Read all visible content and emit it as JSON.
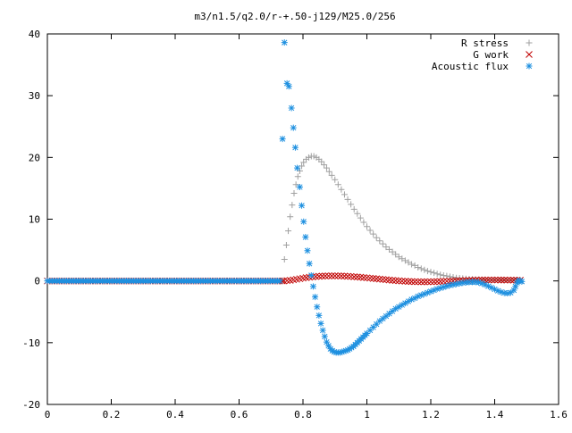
{
  "chart_data": {
    "type": "scatter",
    "title": "m3/n1.5/q2.0/r-+.50-j129/M25.0/256",
    "xlabel": "",
    "ylabel": "",
    "xlim": [
      0,
      1.6
    ],
    "ylim": [
      -20,
      40
    ],
    "xticks": [
      "0",
      "0.2",
      "0.4",
      "0.6",
      "0.8",
      "1",
      "1.2",
      "1.4",
      "1.6"
    ],
    "yticks": [
      "-20",
      "-10",
      "0",
      "10",
      "20",
      "30",
      "40"
    ],
    "legend_position": "top-right",
    "grid": false,
    "series": [
      {
        "name": "R stress",
        "marker": "plus",
        "color": "#a0a0a0",
        "points": [
          [
            0.742,
            3.5
          ],
          [
            0.748,
            5.8
          ],
          [
            0.754,
            8.1
          ],
          [
            0.76,
            10.4
          ],
          [
            0.766,
            12.3
          ],
          [
            0.772,
            14.2
          ],
          [
            0.778,
            15.6
          ],
          [
            0.784,
            16.9
          ],
          [
            0.79,
            17.8
          ],
          [
            0.796,
            18.6
          ],
          [
            0.802,
            19.2
          ],
          [
            0.81,
            19.7
          ],
          [
            0.818,
            20.0
          ],
          [
            0.826,
            20.2
          ],
          [
            0.834,
            20.2
          ],
          [
            0.842,
            20.0
          ],
          [
            0.85,
            19.7
          ],
          [
            0.858,
            19.3
          ],
          [
            0.866,
            18.8
          ],
          [
            0.874,
            18.3
          ],
          [
            0.882,
            17.7
          ],
          [
            0.89,
            17.1
          ],
          [
            0.9,
            16.4
          ],
          [
            0.91,
            15.6
          ],
          [
            0.92,
            14.8
          ],
          [
            0.93,
            14.0
          ],
          [
            0.94,
            13.2
          ],
          [
            0.95,
            12.4
          ],
          [
            0.96,
            11.6
          ],
          [
            0.97,
            10.9
          ],
          [
            0.98,
            10.2
          ],
          [
            0.99,
            9.5
          ],
          [
            1.0,
            8.8
          ],
          [
            1.01,
            8.2
          ],
          [
            1.02,
            7.6
          ],
          [
            1.03,
            7.0
          ],
          [
            1.04,
            6.5
          ],
          [
            1.05,
            6.0
          ],
          [
            1.06,
            5.5
          ],
          [
            1.07,
            5.1
          ],
          [
            1.08,
            4.7
          ],
          [
            1.09,
            4.3
          ],
          [
            1.1,
            3.9
          ],
          [
            1.11,
            3.6
          ],
          [
            1.12,
            3.3
          ],
          [
            1.13,
            3.0
          ],
          [
            1.14,
            2.7
          ],
          [
            1.15,
            2.5
          ],
          [
            1.16,
            2.2
          ],
          [
            1.17,
            2.0
          ],
          [
            1.18,
            1.8
          ],
          [
            1.19,
            1.6
          ],
          [
            1.2,
            1.45
          ],
          [
            1.21,
            1.3
          ],
          [
            1.22,
            1.15
          ],
          [
            1.23,
            1.0
          ],
          [
            1.24,
            0.9
          ],
          [
            1.25,
            0.8
          ],
          [
            1.26,
            0.7
          ],
          [
            1.27,
            0.6
          ],
          [
            1.28,
            0.5
          ],
          [
            1.29,
            0.45
          ],
          [
            1.3,
            0.4
          ],
          [
            1.31,
            0.35
          ],
          [
            1.32,
            0.3
          ],
          [
            1.33,
            0.27
          ],
          [
            1.34,
            0.24
          ],
          [
            1.35,
            0.22
          ],
          [
            1.36,
            0.2
          ],
          [
            1.37,
            0.18
          ],
          [
            1.38,
            0.17
          ],
          [
            1.39,
            0.16
          ],
          [
            1.4,
            0.15
          ],
          [
            1.41,
            0.15
          ],
          [
            1.42,
            0.14
          ],
          [
            1.43,
            0.14
          ],
          [
            1.44,
            0.13
          ],
          [
            1.45,
            0.13
          ],
          [
            1.46,
            0.12
          ],
          [
            1.47,
            0.12
          ],
          [
            1.48,
            0.12
          ]
        ]
      },
      {
        "name": "G work",
        "marker": "cross",
        "color": "#c00000",
        "points": [
          [
            0.74,
            0.0
          ],
          [
            0.75,
            0.05
          ],
          [
            0.76,
            0.1
          ],
          [
            0.77,
            0.18
          ],
          [
            0.78,
            0.27
          ],
          [
            0.79,
            0.36
          ],
          [
            0.8,
            0.45
          ],
          [
            0.81,
            0.53
          ],
          [
            0.82,
            0.6
          ],
          [
            0.83,
            0.66
          ],
          [
            0.84,
            0.71
          ],
          [
            0.85,
            0.75
          ],
          [
            0.86,
            0.78
          ],
          [
            0.87,
            0.8
          ],
          [
            0.88,
            0.81
          ],
          [
            0.89,
            0.82
          ],
          [
            0.9,
            0.82
          ],
          [
            0.91,
            0.81
          ],
          [
            0.92,
            0.8
          ],
          [
            0.93,
            0.78
          ],
          [
            0.94,
            0.75
          ],
          [
            0.95,
            0.72
          ],
          [
            0.96,
            0.68
          ],
          [
            0.97,
            0.64
          ],
          [
            0.98,
            0.6
          ],
          [
            0.99,
            0.55
          ],
          [
            1.0,
            0.5
          ],
          [
            1.01,
            0.45
          ],
          [
            1.02,
            0.4
          ],
          [
            1.03,
            0.35
          ],
          [
            1.04,
            0.3
          ],
          [
            1.05,
            0.25
          ],
          [
            1.06,
            0.2
          ],
          [
            1.07,
            0.15
          ],
          [
            1.08,
            0.1
          ],
          [
            1.09,
            0.06
          ],
          [
            1.1,
            0.02
          ],
          [
            1.11,
            -0.02
          ],
          [
            1.12,
            -0.05
          ],
          [
            1.13,
            -0.08
          ],
          [
            1.14,
            -0.1
          ],
          [
            1.15,
            -0.12
          ],
          [
            1.16,
            -0.13
          ],
          [
            1.17,
            -0.14
          ],
          [
            1.18,
            -0.14
          ],
          [
            1.19,
            -0.14
          ],
          [
            1.2,
            -0.13
          ],
          [
            1.21,
            -0.12
          ],
          [
            1.22,
            -0.1
          ],
          [
            1.23,
            -0.08
          ],
          [
            1.24,
            -0.06
          ],
          [
            1.25,
            -0.04
          ],
          [
            1.26,
            -0.02
          ],
          [
            1.27,
            0.0
          ],
          [
            1.28,
            0.02
          ],
          [
            1.29,
            0.04
          ],
          [
            1.3,
            0.06
          ],
          [
            1.31,
            0.08
          ],
          [
            1.32,
            0.1
          ],
          [
            1.33,
            0.12
          ],
          [
            1.34,
            0.13
          ],
          [
            1.35,
            0.14
          ],
          [
            1.36,
            0.15
          ],
          [
            1.37,
            0.15
          ],
          [
            1.38,
            0.16
          ],
          [
            1.39,
            0.16
          ],
          [
            1.4,
            0.16
          ],
          [
            1.41,
            0.16
          ],
          [
            1.42,
            0.15
          ],
          [
            1.43,
            0.15
          ],
          [
            1.44,
            0.14
          ],
          [
            1.45,
            0.14
          ],
          [
            1.46,
            0.13
          ],
          [
            1.47,
            0.12
          ],
          [
            1.48,
            0.12
          ]
        ]
      },
      {
        "name": "Acoustic flux",
        "marker": "star",
        "color": "#1e90e0",
        "points": [
          [
            0.736,
            23.0
          ],
          [
            0.742,
            38.6
          ],
          [
            0.75,
            32.0
          ],
          [
            0.756,
            31.5
          ],
          [
            0.764,
            28.0
          ],
          [
            0.77,
            24.8
          ],
          [
            0.776,
            21.6
          ],
          [
            0.782,
            18.3
          ],
          [
            0.79,
            15.2
          ],
          [
            0.796,
            12.2
          ],
          [
            0.802,
            9.6
          ],
          [
            0.808,
            7.1
          ],
          [
            0.814,
            4.9
          ],
          [
            0.82,
            2.8
          ],
          [
            0.826,
            0.9
          ],
          [
            0.832,
            -0.9
          ],
          [
            0.838,
            -2.6
          ],
          [
            0.844,
            -4.2
          ],
          [
            0.85,
            -5.6
          ],
          [
            0.856,
            -6.9
          ],
          [
            0.862,
            -8.0
          ],
          [
            0.868,
            -9.0
          ],
          [
            0.874,
            -9.9
          ],
          [
            0.88,
            -10.5
          ],
          [
            0.886,
            -11.0
          ],
          [
            0.892,
            -11.3
          ],
          [
            0.898,
            -11.5
          ],
          [
            0.904,
            -11.6
          ],
          [
            0.91,
            -11.6
          ],
          [
            0.916,
            -11.6
          ],
          [
            0.922,
            -11.5
          ],
          [
            0.928,
            -11.4
          ],
          [
            0.934,
            -11.3
          ],
          [
            0.94,
            -11.2
          ],
          [
            0.946,
            -11.0
          ],
          [
            0.952,
            -10.8
          ],
          [
            0.958,
            -10.6
          ],
          [
            0.964,
            -10.3
          ],
          [
            0.97,
            -10.0
          ],
          [
            0.976,
            -9.7
          ],
          [
            0.982,
            -9.4
          ],
          [
            0.988,
            -9.1
          ],
          [
            0.994,
            -8.8
          ],
          [
            1.0,
            -8.5
          ],
          [
            1.01,
            -8.0
          ],
          [
            1.02,
            -7.5
          ],
          [
            1.03,
            -7.0
          ],
          [
            1.04,
            -6.5
          ],
          [
            1.05,
            -6.1
          ],
          [
            1.06,
            -5.7
          ],
          [
            1.07,
            -5.3
          ],
          [
            1.08,
            -4.9
          ],
          [
            1.09,
            -4.5
          ],
          [
            1.1,
            -4.2
          ],
          [
            1.11,
            -3.9
          ],
          [
            1.12,
            -3.6
          ],
          [
            1.13,
            -3.3
          ],
          [
            1.14,
            -3.0
          ],
          [
            1.15,
            -2.8
          ],
          [
            1.16,
            -2.5
          ],
          [
            1.17,
            -2.3
          ],
          [
            1.18,
            -2.1
          ],
          [
            1.19,
            -1.9
          ],
          [
            1.2,
            -1.7
          ],
          [
            1.21,
            -1.5
          ],
          [
            1.22,
            -1.3
          ],
          [
            1.23,
            -1.15
          ],
          [
            1.24,
            -1.0
          ],
          [
            1.25,
            -0.85
          ],
          [
            1.26,
            -0.7
          ],
          [
            1.27,
            -0.6
          ],
          [
            1.28,
            -0.5
          ],
          [
            1.29,
            -0.4
          ],
          [
            1.3,
            -0.3
          ],
          [
            1.31,
            -0.25
          ],
          [
            1.32,
            -0.2
          ],
          [
            1.33,
            -0.18
          ],
          [
            1.34,
            -0.18
          ],
          [
            1.35,
            -0.25
          ],
          [
            1.36,
            -0.4
          ],
          [
            1.37,
            -0.6
          ],
          [
            1.38,
            -0.85
          ],
          [
            1.39,
            -1.1
          ],
          [
            1.4,
            -1.35
          ],
          [
            1.41,
            -1.6
          ],
          [
            1.42,
            -1.8
          ],
          [
            1.43,
            -1.95
          ],
          [
            1.44,
            -2.0
          ],
          [
            1.45,
            -1.9
          ],
          [
            1.46,
            -1.5
          ],
          [
            1.465,
            -0.9
          ],
          [
            1.47,
            -0.3
          ],
          [
            1.475,
            0.05
          ],
          [
            1.48,
            0.0
          ],
          [
            1.485,
            -0.1
          ]
        ]
      }
    ]
  }
}
